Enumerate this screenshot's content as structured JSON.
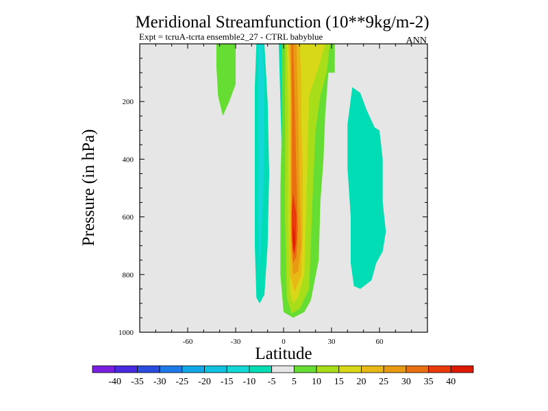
{
  "chart_data": {
    "type": "contour",
    "title": "Meridional Streamfunction (10**9kg/m-2)",
    "subtitle": "Expt = tcruA-tcrta ensemble2_27 - CTRL babyblue",
    "annotation": "ANN",
    "xlabel": "Latitude",
    "ylabel": "Pressure (in hPa)",
    "xlim": [
      -90,
      90
    ],
    "ylim": [
      1000,
      0
    ],
    "xticks": [
      -60,
      -30,
      0,
      30,
      60
    ],
    "xtick_labels": [
      "-60",
      "-30",
      "0",
      "30",
      "60"
    ],
    "yticks": [
      200,
      400,
      600,
      800,
      1000
    ],
    "ytick_labels": [
      "200",
      "400",
      "600",
      "800",
      "1000"
    ],
    "background_color": "#e6e6e6",
    "colorbar": {
      "levels": [
        -40,
        -35,
        -30,
        -25,
        -20,
        -15,
        -10,
        -5,
        5,
        10,
        15,
        20,
        25,
        30,
        35,
        40
      ],
      "labels": [
        "-40",
        "-35",
        "-30",
        "-25",
        "-20",
        "-15",
        "-10",
        "-5",
        "5",
        "10",
        "15",
        "20",
        "25",
        "30",
        "35",
        "40"
      ],
      "colors": [
        "#7a1fe0",
        "#4a2ae0",
        "#2a4de0",
        "#1e7ae8",
        "#12a8e8",
        "#10c2e0",
        "#14d8d8",
        "#00ddb4",
        "#e6e6e6",
        "#66dd33",
        "#a8dd1a",
        "#d8d818",
        "#e8b814",
        "#e89a12",
        "#e87010",
        "#e83a0a",
        "#dd1a00"
      ]
    },
    "regions": [
      {
        "name": "positive-5-10-nh-upper",
        "value": "5 to 10",
        "color": "#66dd33",
        "points": [
          [
            -38,
            0
          ],
          [
            -30,
            0
          ],
          [
            -30,
            140
          ],
          [
            -34,
            200
          ],
          [
            -38,
            250
          ],
          [
            -41,
            180
          ],
          [
            -42,
            80
          ],
          [
            -42,
            0
          ]
        ]
      },
      {
        "name": "negative-5-sh-cell",
        "value": "-10 to -5",
        "color": "#00ddb4",
        "points": [
          [
            -17,
            0
          ],
          [
            -12,
            0
          ],
          [
            -10,
            200
          ],
          [
            -9,
            450
          ],
          [
            -10,
            700
          ],
          [
            -12,
            870
          ],
          [
            -15,
            900
          ],
          [
            -17,
            880
          ],
          [
            -18,
            700
          ],
          [
            -18,
            400
          ],
          [
            -18,
            150
          ]
        ]
      },
      {
        "name": "negative-10-sh-core",
        "value": "-15 to -10",
        "color": "#14d8d8",
        "points": [
          [
            -16,
            0
          ],
          [
            -13,
            0
          ],
          [
            -12,
            150
          ],
          [
            -12,
            380
          ],
          [
            -13,
            560
          ],
          [
            -14,
            680
          ],
          [
            -15,
            800
          ],
          [
            -16,
            600
          ],
          [
            -16,
            300
          ]
        ]
      },
      {
        "name": "negative-5-thin-band",
        "value": "-10 to -5",
        "color": "#00ddb4",
        "points": [
          [
            -3,
            0
          ],
          [
            1,
            0
          ],
          [
            2,
            200
          ],
          [
            2,
            400
          ],
          [
            1,
            500
          ],
          [
            -1,
            420
          ],
          [
            -2,
            200
          ]
        ]
      },
      {
        "name": "positive-5-tropical-cell",
        "value": "5 to 10",
        "color": "#66dd33",
        "points": [
          [
            -1,
            0
          ],
          [
            32,
            0
          ],
          [
            32,
            90
          ],
          [
            32,
            100
          ],
          [
            28,
            100
          ],
          [
            26,
            250
          ],
          [
            25,
            400
          ],
          [
            23,
            550
          ],
          [
            22,
            750
          ],
          [
            17,
            890
          ],
          [
            13,
            930
          ],
          [
            6,
            950
          ],
          [
            0,
            930
          ],
          [
            -2,
            800
          ],
          [
            -2,
            500
          ],
          [
            -1,
            250
          ]
        ]
      },
      {
        "name": "positive-10",
        "value": "10 to 15",
        "color": "#a8dd1a",
        "points": [
          [
            1,
            0
          ],
          [
            29,
            0
          ],
          [
            27,
            100
          ],
          [
            23,
            180
          ],
          [
            20,
            300
          ],
          [
            18,
            550
          ],
          [
            17,
            700
          ],
          [
            16,
            850
          ],
          [
            10,
            920
          ],
          [
            5,
            935
          ],
          [
            2,
            880
          ],
          [
            1,
            600
          ],
          [
            1,
            200
          ]
        ]
      },
      {
        "name": "positive-15",
        "value": "15 to 20",
        "color": "#d8d818",
        "points": [
          [
            2,
            0
          ],
          [
            26,
            0
          ],
          [
            22,
            80
          ],
          [
            16,
            180
          ],
          [
            15,
            400
          ],
          [
            14,
            600
          ],
          [
            13,
            800
          ],
          [
            9,
            880
          ],
          [
            6,
            900
          ],
          [
            4,
            860
          ],
          [
            3,
            600
          ],
          [
            3,
            200
          ]
        ]
      },
      {
        "name": "positive-20",
        "value": "20 to 25",
        "color": "#e8b814",
        "points": [
          [
            3,
            0
          ],
          [
            10,
            0
          ],
          [
            11,
            100
          ],
          [
            11,
            250
          ],
          [
            12,
            450
          ],
          [
            12,
            650
          ],
          [
            11,
            800
          ],
          [
            7,
            860
          ],
          [
            4,
            800
          ],
          [
            4,
            600
          ],
          [
            4,
            300
          ],
          [
            4,
            80
          ]
        ]
      },
      {
        "name": "positive-25",
        "value": "25 to 30",
        "color": "#e89a12",
        "points": [
          [
            4,
            0
          ],
          [
            8,
            0
          ],
          [
            9,
            200
          ],
          [
            10,
            500
          ],
          [
            11,
            700
          ],
          [
            9,
            790
          ],
          [
            6,
            800
          ],
          [
            5,
            720
          ],
          [
            5,
            500
          ],
          [
            5,
            200
          ]
        ]
      },
      {
        "name": "positive-30",
        "value": "30 to 35",
        "color": "#e87010",
        "points": [
          [
            5,
            0
          ],
          [
            6,
            0
          ],
          [
            7,
            200
          ],
          [
            8,
            450
          ],
          [
            9,
            640
          ],
          [
            8,
            740
          ],
          [
            6,
            760
          ],
          [
            5,
            680
          ],
          [
            5,
            450
          ],
          [
            5,
            150
          ]
        ]
      },
      {
        "name": "positive-35",
        "value": "35 to 40",
        "color": "#e83a0a",
        "points": [
          [
            6,
            520
          ],
          [
            8,
            590
          ],
          [
            8,
            680
          ],
          [
            7,
            730
          ],
          [
            6,
            720
          ],
          [
            5,
            660
          ],
          [
            5,
            580
          ]
        ]
      },
      {
        "name": "positive-40",
        "value": "> 40",
        "color": "#dd1a00",
        "points": [
          [
            6,
            630
          ],
          [
            7,
            660
          ],
          [
            7,
            700
          ],
          [
            6,
            720
          ],
          [
            6,
            680
          ]
        ]
      },
      {
        "name": "negative-5-nh-cell",
        "value": "-10 to -5",
        "color": "#00ddb4",
        "points": [
          [
            43,
            150
          ],
          [
            48,
            170
          ],
          [
            52,
            230
          ],
          [
            57,
            290
          ],
          [
            60,
            300
          ],
          [
            62,
            400
          ],
          [
            62,
            550
          ],
          [
            64,
            650
          ],
          [
            62,
            720
          ],
          [
            58,
            760
          ],
          [
            55,
            820
          ],
          [
            48,
            850
          ],
          [
            44,
            840
          ],
          [
            42,
            760
          ],
          [
            42,
            600
          ],
          [
            40,
            430
          ],
          [
            40,
            280
          ]
        ]
      }
    ]
  }
}
